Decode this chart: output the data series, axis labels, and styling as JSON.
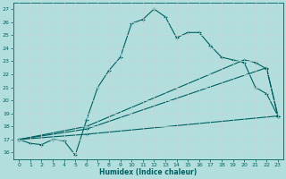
{
  "line1_x": [
    0,
    1,
    2,
    3,
    4,
    5,
    6,
    7,
    8,
    9,
    10,
    11,
    12,
    13,
    14,
    15,
    16,
    17,
    18,
    19,
    20,
    21,
    22,
    23
  ],
  "line1_y": [
    17.0,
    16.7,
    16.6,
    17.0,
    16.9,
    15.8,
    18.5,
    21.0,
    22.3,
    23.3,
    25.9,
    26.2,
    27.0,
    26.4,
    24.8,
    25.2,
    25.2,
    24.2,
    23.3,
    23.1,
    22.9,
    21.0,
    20.5,
    18.8
  ],
  "line2_x": [
    0,
    6,
    20,
    21,
    22,
    23
  ],
  "line2_y": [
    17.0,
    18.0,
    23.1,
    22.9,
    22.4,
    18.8
  ],
  "line3_x": [
    0,
    6,
    22,
    23
  ],
  "line3_y": [
    17.0,
    17.8,
    22.5,
    18.8
  ],
  "line4_x": [
    0,
    6,
    23
  ],
  "line4_y": [
    17.0,
    17.4,
    18.8
  ],
  "color": "#006060",
  "bg_color": "#b2dede",
  "grid_color": "#c0d4d4",
  "xlabel": "Humidex (Indice chaleur)",
  "xlim": [
    -0.5,
    23.5
  ],
  "ylim": [
    15.5,
    27.5
  ],
  "yticks": [
    16,
    17,
    18,
    19,
    20,
    21,
    22,
    23,
    24,
    25,
    26,
    27
  ],
  "xticks": [
    0,
    1,
    2,
    3,
    4,
    5,
    6,
    7,
    8,
    9,
    10,
    11,
    12,
    13,
    14,
    15,
    16,
    17,
    18,
    19,
    20,
    21,
    22,
    23
  ]
}
